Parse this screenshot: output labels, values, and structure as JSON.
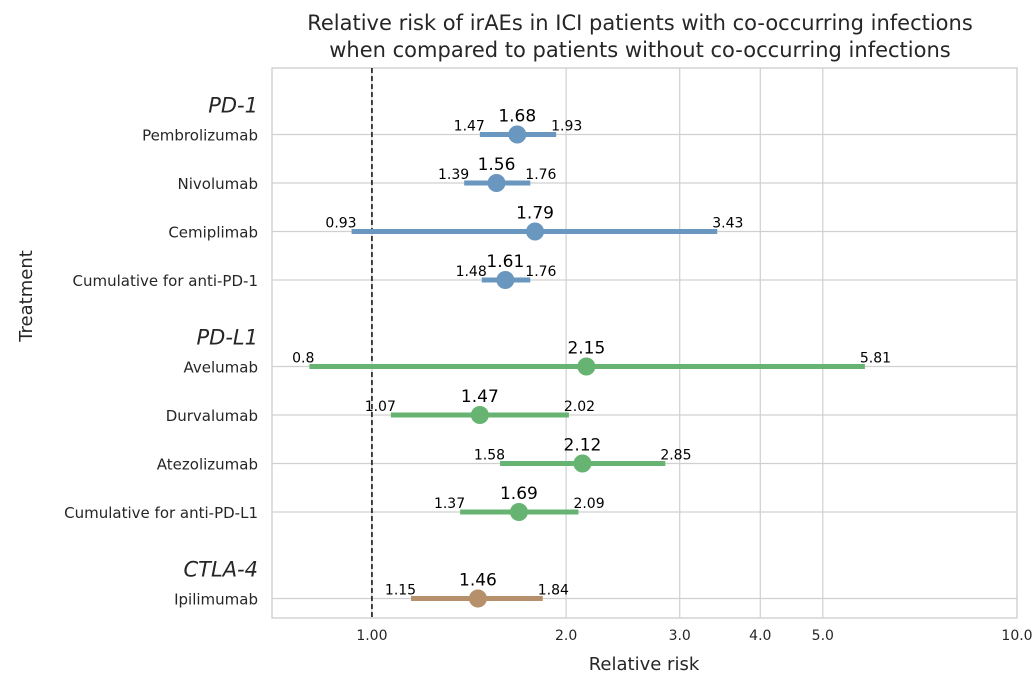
{
  "chart_data": {
    "type": "forest",
    "title": [
      "Relative risk of irAEs in ICI patients with co-occurring infections",
      "when compared to patients without co-occurring infections"
    ],
    "xlabel": "Relative risk",
    "ylabel": "Treatment",
    "x_scale": "log",
    "xlim": [
      0.7,
      10.0
    ],
    "x_ticks": [
      {
        "value": 1.0,
        "label": "1.00"
      },
      {
        "value": 2.0,
        "label": "2.0"
      },
      {
        "value": 3.0,
        "label": "3.0"
      },
      {
        "value": 4.0,
        "label": "4.0"
      },
      {
        "value": 5.0,
        "label": "5.0"
      },
      {
        "value": 10.0,
        "label": "10.0"
      }
    ],
    "reference_line": 1.0,
    "grid": true,
    "colors": {
      "PD-1": "#6a97bf",
      "PD-L1": "#67b371",
      "CTLA-4": "#b5906a",
      "grid": "#d0d0d0",
      "axis": "#c8c8c8"
    },
    "groups": [
      {
        "name": "PD-1",
        "rows": [
          {
            "label": "Pembrolizumab",
            "estimate": 1.68,
            "lower": 1.47,
            "upper": 1.93,
            "est_label": "1.68",
            "lower_label": "1.47",
            "upper_label": "1.93"
          },
          {
            "label": "Nivolumab",
            "estimate": 1.56,
            "lower": 1.39,
            "upper": 1.76,
            "est_label": "1.56",
            "lower_label": "1.39",
            "upper_label": "1.76"
          },
          {
            "label": "Cemiplimab",
            "estimate": 1.79,
            "lower": 0.93,
            "upper": 3.43,
            "est_label": "1.79",
            "lower_label": "0.93",
            "upper_label": "3.43"
          },
          {
            "label": "Cumulative for anti-PD-1",
            "estimate": 1.61,
            "lower": 1.48,
            "upper": 1.76,
            "est_label": "1.61",
            "lower_label": "1.48",
            "upper_label": "1.76"
          }
        ]
      },
      {
        "name": "PD-L1",
        "rows": [
          {
            "label": "Avelumab",
            "estimate": 2.15,
            "lower": 0.8,
            "upper": 5.81,
            "est_label": "2.15",
            "lower_label": "0.8",
            "upper_label": "5.81"
          },
          {
            "label": "Durvalumab",
            "estimate": 1.47,
            "lower": 1.07,
            "upper": 2.02,
            "est_label": "1.47",
            "lower_label": "1.07",
            "upper_label": "2.02"
          },
          {
            "label": "Atezolizumab",
            "estimate": 2.12,
            "lower": 1.58,
            "upper": 2.85,
            "est_label": "2.12",
            "lower_label": "1.58",
            "upper_label": "2.85"
          },
          {
            "label": "Cumulative for anti-PD-L1",
            "estimate": 1.69,
            "lower": 1.37,
            "upper": 2.09,
            "est_label": "1.69",
            "lower_label": "1.37",
            "upper_label": "2.09"
          }
        ]
      },
      {
        "name": "CTLA-4",
        "rows": [
          {
            "label": "Ipilimumab",
            "estimate": 1.46,
            "lower": 1.15,
            "upper": 1.84,
            "est_label": "1.46",
            "lower_label": "1.15",
            "upper_label": "1.84"
          }
        ]
      }
    ]
  }
}
